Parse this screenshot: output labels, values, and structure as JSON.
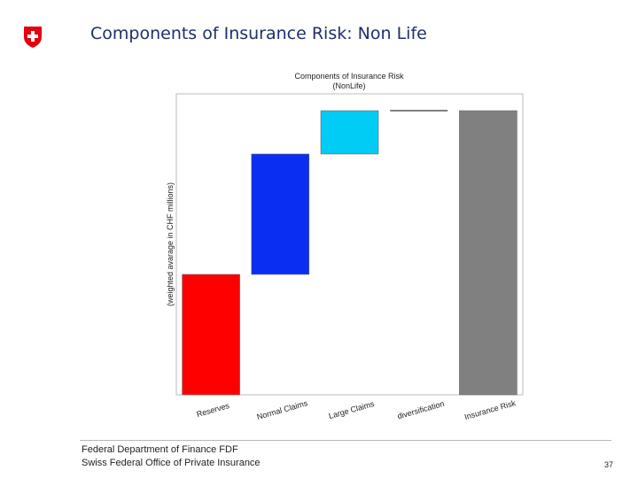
{
  "slide": {
    "title": "Components of Insurance Risk: Non Life",
    "footer_line1": "Federal Department of Finance FDF",
    "footer_line2": "Swiss Federal Office of Private Insurance",
    "page_number": "37"
  },
  "logo": {
    "icon": "swiss-cross-shield-icon",
    "color": "#e3000f"
  },
  "chart_data": {
    "type": "bar",
    "subtype": "waterfall",
    "title": "Components of Insurance Risk",
    "subtitle": "(NonLife)",
    "ylabel": "(weighted avarage in CHF millions)",
    "xlabel": "",
    "categories": [
      "Reserves",
      "Normal Claims",
      "Large Claims",
      "diversification",
      "Insurance Risk"
    ],
    "bars": [
      {
        "category": "Reserves",
        "start": 0,
        "end": 100,
        "color": "#ff0000"
      },
      {
        "category": "Normal Claims",
        "start": 100,
        "end": 200,
        "color": "#0a2ff0"
      },
      {
        "category": "Large Claims",
        "start": 200,
        "end": 236,
        "color": "#00ccf5"
      },
      {
        "category": "diversification",
        "start": 236,
        "end": 236,
        "color": "#000000"
      },
      {
        "category": "Insurance Risk",
        "start": 0,
        "end": 236,
        "color": "#808080"
      }
    ],
    "ylim": [
      0,
      250
    ],
    "y_ticks_shown": false,
    "grid": false,
    "legend": "none"
  }
}
